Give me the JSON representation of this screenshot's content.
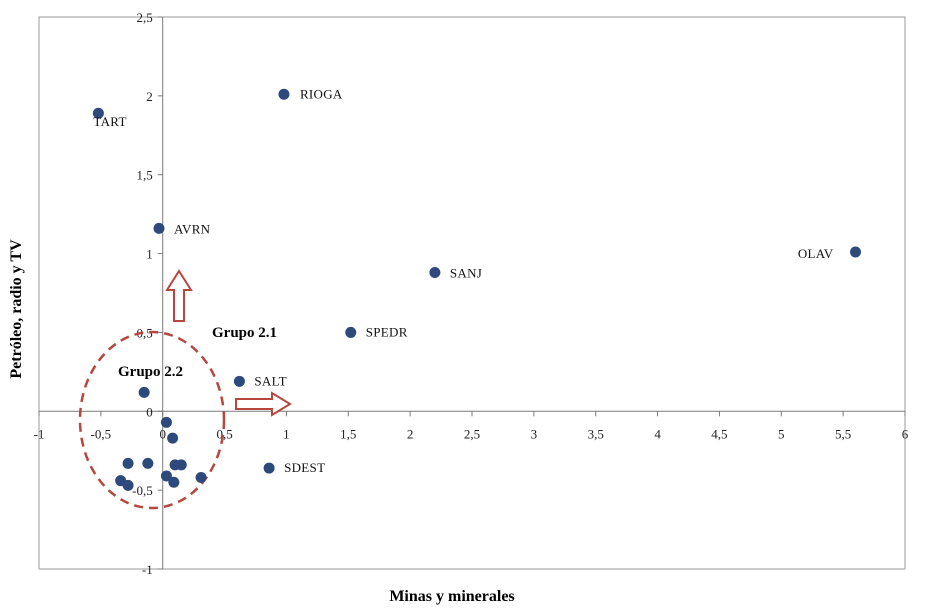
{
  "chart_data": {
    "type": "scatter",
    "title": "",
    "xlabel": "Minas y minerales",
    "ylabel": "Petróleo, radio y TV",
    "xlim": [
      -1,
      6
    ],
    "ylim": [
      -1,
      2.5
    ],
    "x_ticks": [
      "-1",
      "-0,5",
      "0",
      "0,5",
      "1",
      "1,5",
      "2",
      "2,5",
      "3",
      "3,5",
      "4",
      "4,5",
      "5",
      "5,5",
      "6"
    ],
    "y_ticks": [
      "-1",
      "-0,5",
      "0",
      "0,5",
      "1",
      "1,5",
      "2",
      "2,5"
    ],
    "grid": false,
    "marker_color": "#2e4a7d",
    "annotation_color": "#b5473f",
    "points": [
      {
        "x": -0.52,
        "y": 1.89,
        "label": "TART"
      },
      {
        "x": 0.98,
        "y": 2.01,
        "label": "RIOGA"
      },
      {
        "x": -0.03,
        "y": 1.16,
        "label": "AVRN"
      },
      {
        "x": 5.6,
        "y": 1.01,
        "label": "OLAV"
      },
      {
        "x": 2.2,
        "y": 0.88,
        "label": "SANJ"
      },
      {
        "x": 1.52,
        "y": 0.5,
        "label": "SPEDR"
      },
      {
        "x": 0.62,
        "y": 0.19,
        "label": "SALT"
      },
      {
        "x": 0.86,
        "y": -0.36,
        "label": "SDEST"
      },
      {
        "x": -0.15,
        "y": 0.12,
        "label": ""
      },
      {
        "x": 0.03,
        "y": -0.07,
        "label": ""
      },
      {
        "x": 0.08,
        "y": -0.17,
        "label": ""
      },
      {
        "x": -0.28,
        "y": -0.33,
        "label": ""
      },
      {
        "x": -0.12,
        "y": -0.33,
        "label": ""
      },
      {
        "x": 0.1,
        "y": -0.34,
        "label": ""
      },
      {
        "x": 0.15,
        "y": -0.34,
        "label": ""
      },
      {
        "x": 0.03,
        "y": -0.41,
        "label": ""
      },
      {
        "x": 0.31,
        "y": -0.42,
        "label": ""
      },
      {
        "x": -0.34,
        "y": -0.44,
        "label": ""
      },
      {
        "x": 0.09,
        "y": -0.45,
        "label": ""
      },
      {
        "x": -0.28,
        "y": -0.47,
        "label": ""
      }
    ],
    "annotations": [
      {
        "text": "Grupo 2.1"
      },
      {
        "text": "Grupo 2.2"
      }
    ]
  }
}
